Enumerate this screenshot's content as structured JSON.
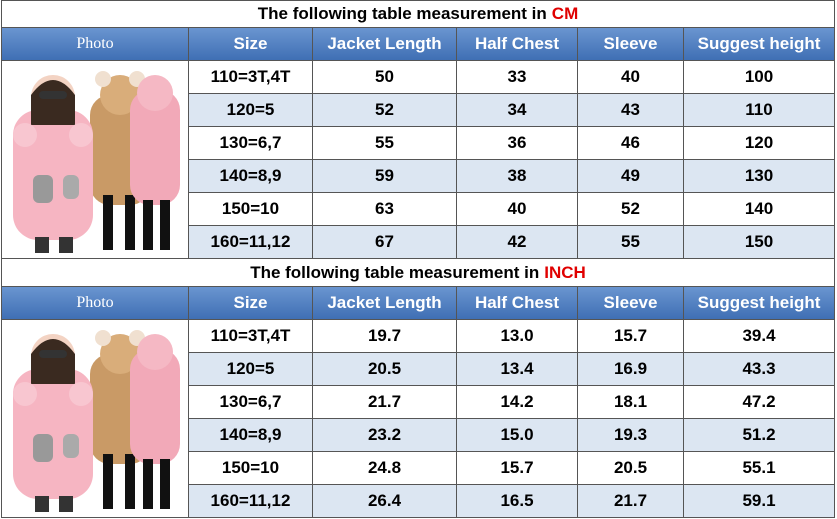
{
  "sections": [
    {
      "title": "The following table measurement in",
      "unit": "CM",
      "headers": [
        "Photo",
        "Size",
        "Jacket Length",
        "Half Chest",
        "Sleeve",
        "Suggest height"
      ],
      "rows": [
        [
          "110=3T,4T",
          "50",
          "33",
          "40",
          "100"
        ],
        [
          "120=5",
          "52",
          "34",
          "43",
          "110"
        ],
        [
          "130=6,7",
          "55",
          "36",
          "46",
          "120"
        ],
        [
          "140=8,9",
          "59",
          "38",
          "49",
          "130"
        ],
        [
          "150=10",
          "63",
          "40",
          "52",
          "140"
        ],
        [
          "160=11,12",
          "67",
          "42",
          "55",
          "150"
        ]
      ]
    },
    {
      "title": "The following table measurement in",
      "unit": "INCH",
      "headers": [
        "Photo",
        "Size",
        "Jacket Length",
        "Half Chest",
        "Sleeve",
        "Suggest height"
      ],
      "rows": [
        [
          "110=3T,4T",
          "19.7",
          "13.0",
          "15.7",
          "39.4"
        ],
        [
          "120=5",
          "20.5",
          "13.4",
          "16.9",
          "43.3"
        ],
        [
          "130=6,7",
          "21.7",
          "14.2",
          "18.1",
          "47.2"
        ],
        [
          "140=8,9",
          "23.2",
          "15.0",
          "19.3",
          "51.2"
        ],
        [
          "150=10",
          "24.8",
          "15.7",
          "20.5",
          "55.1"
        ],
        [
          "160=11,12",
          "26.4",
          "16.5",
          "21.7",
          "59.1"
        ]
      ]
    }
  ]
}
